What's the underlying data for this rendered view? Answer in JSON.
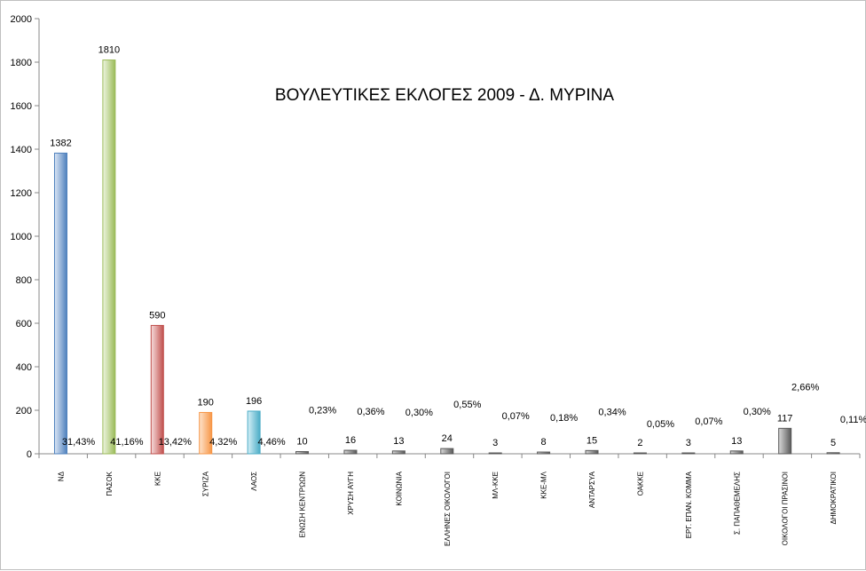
{
  "chart_data": {
    "type": "bar",
    "title": "ΒΟΥΛΕΥΤΙΚΕΣ ΕΚΛΟΓΕΣ 2009 - Δ. ΜΥΡΙΝΑ",
    "xlabel": "",
    "ylabel": "",
    "ylim": [
      0,
      2000
    ],
    "yticks": [
      "0",
      "200",
      "400",
      "600",
      "800",
      "1000",
      "1200",
      "1400",
      "1600",
      "1800",
      "2000"
    ],
    "grid": false,
    "legend": "none",
    "categories": [
      "ΝΔ",
      "ΠΑΣΟΚ",
      "ΚΚΕ",
      "ΣΥΡΙΖΑ",
      "ΛΑΟΣ",
      "ΕΝΩΣΗ ΚΕΝΤΡΩΩΝ",
      "ΧΡΥΣΗ ΑΥΓΗ",
      "ΚΟΙΝΩΝΙΑ",
      "ΕΛΛΗΝΕΣ ΟΙΚΟΛΟΓΟΙ",
      "ΜΛ-ΚΚΕ",
      "ΚΚΕ-ΜΛ",
      "ΑΝΤΑΡΣΥΑ",
      "ΟΑΚΚΕ",
      "ΕΡΓ. ΕΠΑΝ. ΚΟΜΜΑ",
      "Σ. ΠΑΠΑΘΕΜΕΛΗΣ",
      "ΟΙΚΟΛΟΓΟΙ ΠΡΑΣΙΝΟΙ",
      "ΔΗΜΟΚΡΑΤΙΚΟΙ"
    ],
    "values": [
      1382,
      1810,
      590,
      190,
      196,
      10,
      16,
      13,
      24,
      3,
      8,
      15,
      2,
      3,
      13,
      117,
      5
    ],
    "value_labels": [
      "1382",
      "1810",
      "590",
      "190",
      "196",
      "10",
      "16",
      "13",
      "24",
      "3",
      "8",
      "15",
      "2",
      "3",
      "13",
      "117",
      "5"
    ],
    "percent_labels": [
      "31,43%",
      "41,16%",
      "13,42%",
      "4,32%",
      "4,46%",
      "0,23%",
      "0,36%",
      "0,30%",
      "0,55%",
      "0,07%",
      "0,18%",
      "0,34%",
      "0,05%",
      "0,07%",
      "0,30%",
      "2,66%",
      "0,11%"
    ],
    "bar_colors": [
      "#4f81bd",
      "#9bbb59",
      "#c0504d",
      "#f79646",
      "#4bacc6",
      "#595959",
      "#595959",
      "#595959",
      "#595959",
      "#595959",
      "#595959",
      "#595959",
      "#595959",
      "#595959",
      "#595959",
      "#595959",
      "#595959"
    ],
    "bar_fills": [
      "#dbe6f5",
      "#eef5e0",
      "#f7dcdc",
      "#fde3cc",
      "#d6f0f7",
      "#d9d9d9",
      "#d9d9d9",
      "#d9d9d9",
      "#d9d9d9",
      "#d9d9d9",
      "#d9d9d9",
      "#d9d9d9",
      "#d9d9d9",
      "#d9d9d9",
      "#d9d9d9",
      "#d9d9d9",
      "#d9d9d9"
    ]
  }
}
